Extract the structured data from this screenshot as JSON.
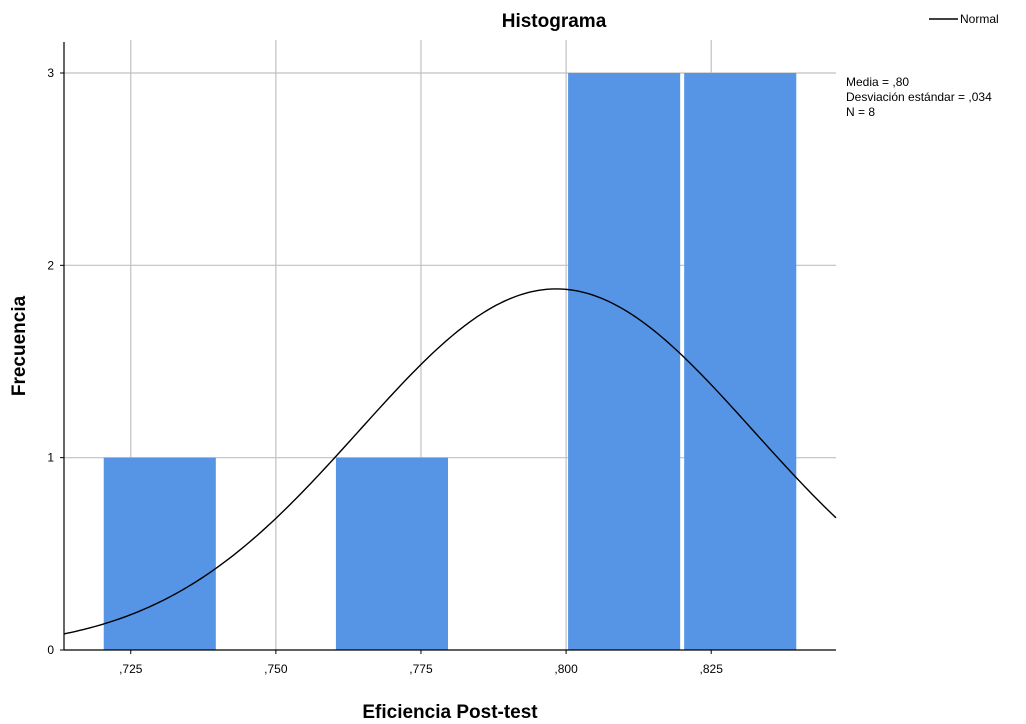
{
  "chart_data": {
    "type": "bar",
    "title": "Histograma",
    "xlabel": "Eficiencia Post-test",
    "ylabel": "Frecuencia",
    "xlim": [
      0.7135,
      0.8465
    ],
    "ylim": [
      0,
      3
    ],
    "x_ticks": [
      {
        "value": 0.725,
        "label": ",725"
      },
      {
        "value": 0.75,
        "label": ",750"
      },
      {
        "value": 0.775,
        "label": ",775"
      },
      {
        "value": 0.8,
        "label": ",800"
      },
      {
        "value": 0.825,
        "label": ",825"
      }
    ],
    "y_ticks": [
      {
        "value": 0,
        "label": "0"
      },
      {
        "value": 1,
        "label": "1"
      },
      {
        "value": 2,
        "label": "2"
      },
      {
        "value": 3,
        "label": "3"
      }
    ],
    "bins": [
      {
        "from": 0.72,
        "to": 0.74,
        "count": 1
      },
      {
        "from": 0.74,
        "to": 0.76,
        "count": 0
      },
      {
        "from": 0.76,
        "to": 0.78,
        "count": 1
      },
      {
        "from": 0.78,
        "to": 0.8,
        "count": 0
      },
      {
        "from": 0.8,
        "to": 0.82,
        "count": 3
      },
      {
        "from": 0.82,
        "to": 0.84,
        "count": 3
      }
    ],
    "normal_curve": {
      "mean": 0.7983,
      "sd": 0.034,
      "n": 8,
      "bin_width": 0.02
    },
    "legend": {
      "label": "Normal",
      "position": "top-right"
    },
    "stats": [
      "Media = ,80",
      "Desviación estándar = ,034",
      "N = 8"
    ],
    "grid": true,
    "colors": {
      "bar": "#5694e6",
      "curve": "#000000",
      "grid": "#c0c0c0"
    }
  }
}
